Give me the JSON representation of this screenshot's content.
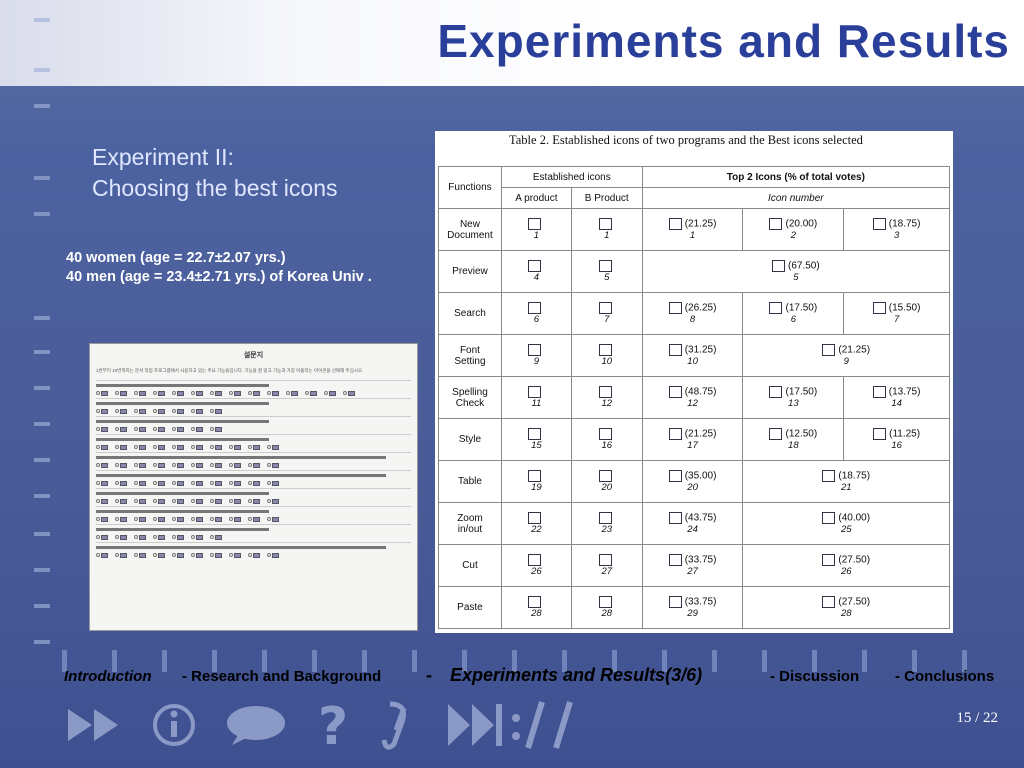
{
  "slide": {
    "title": "Experiments and Results",
    "subhead_line1": "Experiment II:",
    "subhead_line2": "Choosing the best icons",
    "participants_line1": "40 women (age = 22.7±2.07 yrs.)",
    "participants_line2": "40 men (age = 23.4±2.71 yrs.) of Korea Univ .",
    "page_number": "15 / 22"
  },
  "survey": {
    "heading": "설문지",
    "intro": "1번부터 10번까지는 문서 작업 프로그램에서 사용하고 있는 주요 기능들입니다. 기능을 잘 읽고 기능과 가장 어울리는 아이콘을 선택해 주십시오."
  },
  "table": {
    "caption": "Table 2. Established icons of two programs and the Best icons selected",
    "h_functions": "Functions",
    "h_established": "Established icons",
    "h_top2": "Top 2 Icons (% of total votes)",
    "h_a": "A product",
    "h_b": "B Product",
    "h_iconnum": "Icon number",
    "rows": [
      {
        "f1": "New",
        "f2": "Document",
        "a": "1",
        "b": "1",
        "t": [
          {
            "p": "(21.25)",
            "n": "1"
          },
          {
            "p": "(20.00)",
            "n": "2"
          },
          {
            "p": "(18.75)",
            "n": "3"
          }
        ]
      },
      {
        "f1": "Preview",
        "f2": "",
        "a": "4",
        "b": "5",
        "t": [
          {
            "p": "(67.50)",
            "n": "5"
          }
        ]
      },
      {
        "f1": "Search",
        "f2": "",
        "a": "6",
        "b": "7",
        "t": [
          {
            "p": "(26.25)",
            "n": "8"
          },
          {
            "p": "(17.50)",
            "n": "6"
          },
          {
            "p": "(15.50)",
            "n": "7"
          }
        ]
      },
      {
        "f1": "Font",
        "f2": "Setting",
        "a": "9",
        "b": "10",
        "t": [
          {
            "p": "(31.25)",
            "n": "10"
          },
          {
            "p": "(21.25)",
            "n": "9"
          }
        ]
      },
      {
        "f1": "Spelling",
        "f2": "Check",
        "a": "11",
        "b": "12",
        "t": [
          {
            "p": "(48.75)",
            "n": "12"
          },
          {
            "p": "(17.50)",
            "n": "13"
          },
          {
            "p": "(13.75)",
            "n": "14"
          }
        ]
      },
      {
        "f1": "Style",
        "f2": "",
        "a": "15",
        "b": "16",
        "t": [
          {
            "p": "(21.25)",
            "n": "17"
          },
          {
            "p": "(12.50)",
            "n": "18"
          },
          {
            "p": "(11.25)",
            "n": "16"
          }
        ]
      },
      {
        "f1": "Table",
        "f2": "",
        "a": "19",
        "b": "20",
        "t": [
          {
            "p": "(35.00)",
            "n": "20"
          },
          {
            "p": "(18.75)",
            "n": "21"
          }
        ]
      },
      {
        "f1": "Zoom",
        "f2": "in/out",
        "a": "22",
        "b": "23",
        "t": [
          {
            "p": "(43.75)",
            "n": "24"
          },
          {
            "p": "(40.00)",
            "n": "25"
          }
        ]
      },
      {
        "f1": "Cut",
        "f2": "",
        "a": "26",
        "b": "27",
        "t": [
          {
            "p": "(33.75)",
            "n": "27"
          },
          {
            "p": "(27.50)",
            "n": "26"
          }
        ]
      },
      {
        "f1": "Paste",
        "f2": "",
        "a": "28",
        "b": "28",
        "t": [
          {
            "p": "(33.75)",
            "n": "29"
          },
          {
            "p": "(27.50)",
            "n": "28"
          }
        ]
      }
    ]
  },
  "footer_nav": {
    "intro": "Introduction",
    "research": "- Research and Background",
    "sep": "-",
    "current": "Experiments and Results(3/6)",
    "discussion": "- Discussion",
    "conclusions": "- Conclusions"
  }
}
